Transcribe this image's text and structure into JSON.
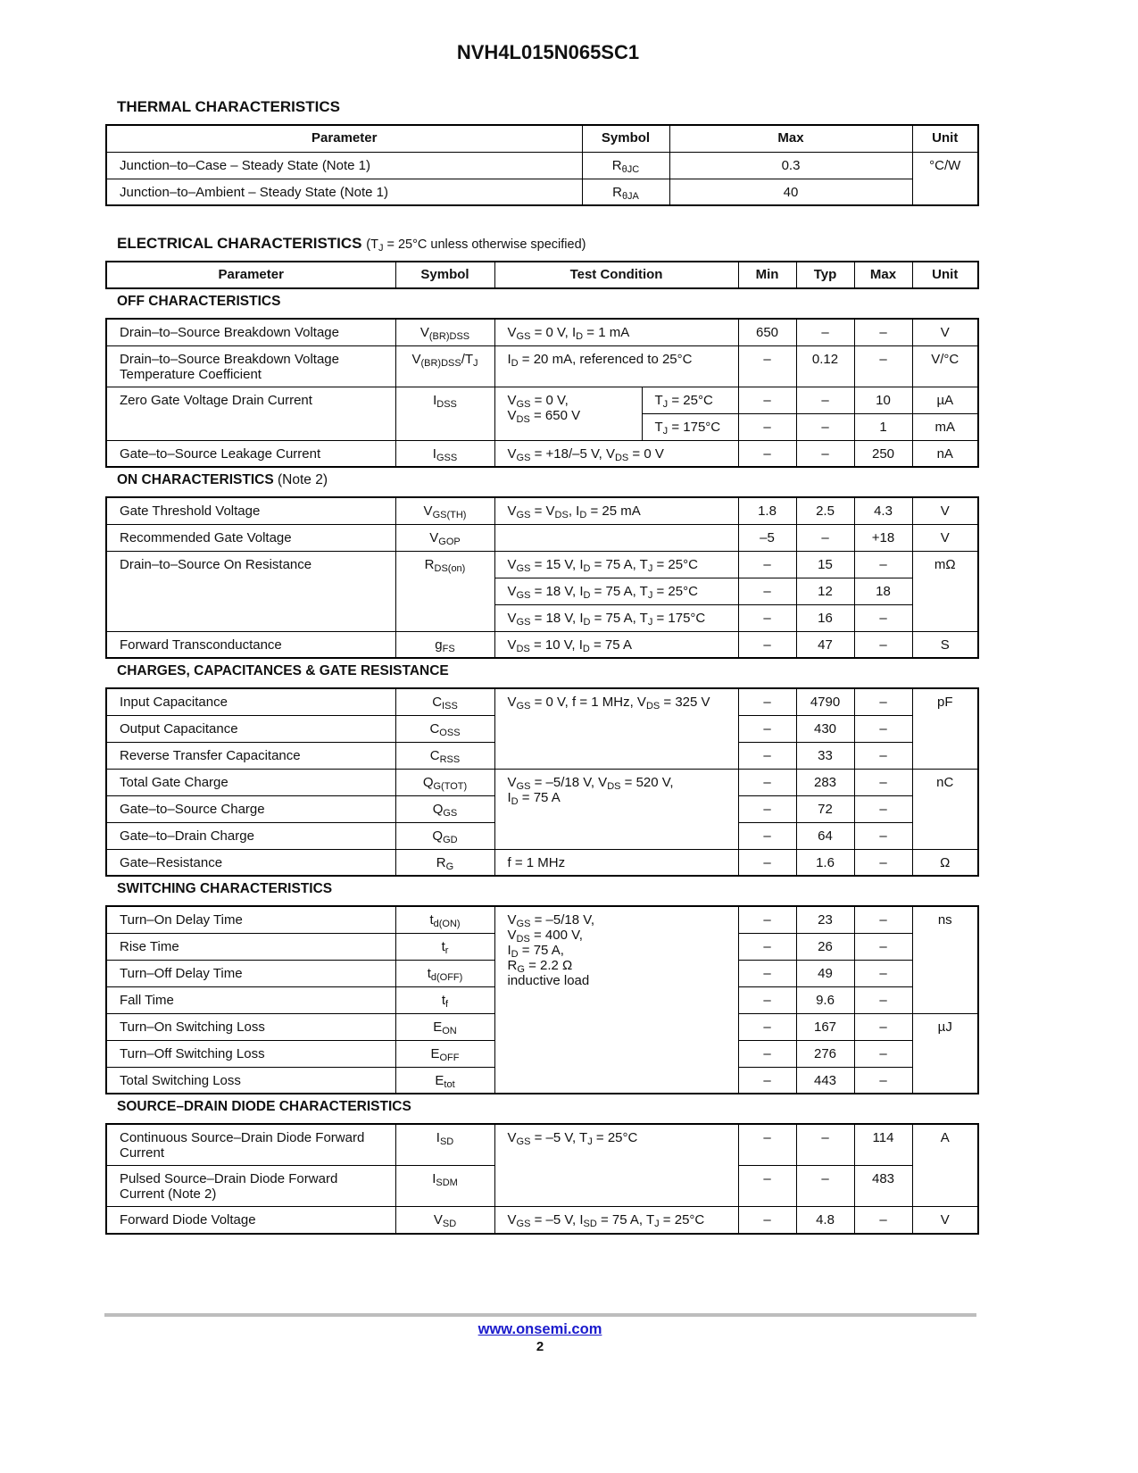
{
  "title": "NVH4L015N065SC1",
  "thermal": {
    "title": "THERMAL CHARACTERISTICS",
    "headers": [
      "Parameter",
      "Symbol",
      "Max",
      "Unit"
    ],
    "rows": [
      {
        "param": "Junction–to–Case – Steady State (Note 1)",
        "sym": "R_{θJC}",
        "max": "0.3",
        "unit": "°C/W"
      },
      {
        "param": "Junction–to–Ambient – Steady State (Note 1)",
        "sym": "R_{θJA}",
        "max": "40",
        "unit": null
      }
    ]
  },
  "electrical": {
    "title": "ELECTRICAL CHARACTERISTICS",
    "note": "(T_{J} = 25°C unless otherwise specified)",
    "headers": [
      "Parameter",
      "Symbol",
      "Test Condition",
      "Min",
      "Typ",
      "Max",
      "Unit"
    ],
    "sections": [
      {
        "title": "OFF CHARACTERISTICS",
        "note": "",
        "rows": [
          {
            "param": "Drain–to–Source Breakdown Voltage",
            "sym": "V_{(BR)DSS}",
            "cond": "V_{GS} = 0 V, I_{D} = 1 mA",
            "min": "650",
            "typ": "–",
            "max": "–",
            "unit": "V"
          },
          {
            "param": "Drain–to–Source Breakdown Voltage\nTemperature Coefficient",
            "sym": "V_{(BR)DSS}/T_{J}",
            "cond": "I_{D} = 20 mA, referenced to 25°C",
            "min": "–",
            "typ": "0.12",
            "max": "–",
            "unit": "V/°C"
          },
          {
            "param": "Zero Gate Voltage Drain Current",
            "sym": "I_{DSS}",
            "cond": "V_{GS} = 0 V,\nV_{DS} = 650 V",
            "cond2": "T_{J} = 25°C",
            "min": "–",
            "typ": "–",
            "max": "10",
            "unit": "µA"
          },
          {
            "param": null,
            "sym": null,
            "cond": null,
            "cond2": "T_{J} = 175°C",
            "min": "–",
            "typ": "–",
            "max": "1",
            "unit": "mA"
          },
          {
            "param": "Gate–to–Source Leakage Current",
            "sym": "I_{GSS}",
            "cond": "V_{GS} =  +18/–5 V, V_{DS} = 0 V",
            "min": "–",
            "typ": "–",
            "max": "250",
            "unit": "nA"
          }
        ]
      },
      {
        "title": "ON CHARACTERISTICS",
        "note": "(Note 2)",
        "rows": [
          {
            "param": "Gate Threshold Voltage",
            "sym": "V_{GS(TH)}",
            "cond": "V_{GS} = V_{DS}, I_{D} = 25 mA",
            "min": "1.8",
            "typ": "2.5",
            "max": "4.3",
            "unit": "V"
          },
          {
            "param": "Recommended Gate Voltage",
            "sym": "V_{GOP}",
            "cond": "",
            "min": "–5",
            "typ": "–",
            "max": "+18",
            "unit": "V"
          },
          {
            "param": "Drain–to–Source On Resistance",
            "sym": "R_{DS(on)}",
            "cond": "V_{GS} = 15 V, I_{D} = 75 A, T_{J} = 25°C",
            "min": "–",
            "typ": "15",
            "max": "–",
            "unit": "mΩ"
          },
          {
            "param": null,
            "sym": null,
            "cond": "V_{GS} = 18 V, I_{D} = 75 A, T_{J} = 25°C",
            "min": "–",
            "typ": "12",
            "max": "18",
            "unit": null
          },
          {
            "param": null,
            "sym": null,
            "cond": "V_{GS} = 18 V, I_{D} = 75 A, T_{J} = 175°C",
            "min": "–",
            "typ": "16",
            "max": "–",
            "unit": null
          },
          {
            "param": "Forward Transconductance",
            "sym": "g_{FS}",
            "cond": "V_{DS} = 10 V, I_{D} = 75 A",
            "min": "–",
            "typ": "47",
            "max": "–",
            "unit": "S"
          }
        ]
      },
      {
        "title": "CHARGES, CAPACITANCES & GATE RESISTANCE",
        "note": "",
        "rows": [
          {
            "param": "Input Capacitance",
            "sym": "C_{ISS}",
            "cond": "V_{GS} = 0 V, f = 1 MHz, V_{DS} = 325 V",
            "min": "–",
            "typ": "4790",
            "max": "–",
            "unit": "pF"
          },
          {
            "param": "Output Capacitance",
            "sym": "C_{OSS}",
            "cond": null,
            "min": "–",
            "typ": "430",
            "max": "–",
            "unit": null
          },
          {
            "param": "Reverse Transfer Capacitance",
            "sym": "C_{RSS}",
            "cond": null,
            "min": "–",
            "typ": "33",
            "max": "–",
            "unit": null
          },
          {
            "param": "Total Gate Charge",
            "sym": "Q_{G(TOT)}",
            "cond": "V_{GS} = –5/18 V, V_{DS} = 520 V,\nI_{D} = 75 A",
            "min": "–",
            "typ": "283",
            "max": "–",
            "unit": "nC"
          },
          {
            "param": "Gate–to–Source Charge",
            "sym": "Q_{GS}",
            "cond": null,
            "min": "–",
            "typ": "72",
            "max": "–",
            "unit": null
          },
          {
            "param": "Gate–to–Drain Charge",
            "sym": "Q_{GD}",
            "cond": null,
            "min": "–",
            "typ": "64",
            "max": "–",
            "unit": null
          },
          {
            "param": "Gate–Resistance",
            "sym": "R_{G}",
            "cond": "f = 1 MHz",
            "min": "–",
            "typ": "1.6",
            "max": "–",
            "unit": "Ω"
          }
        ]
      },
      {
        "title": "SWITCHING CHARACTERISTICS",
        "note": "",
        "rows": [
          {
            "param": "Turn–On Delay Time",
            "sym": "t_{d(ON)}",
            "cond": "V_{GS} = –5/18 V,\nV_{DS} = 400 V,\nI_{D} = 75 A,\nR_{G} = 2.2 Ω\ninductive load",
            "min": "–",
            "typ": "23",
            "max": "–",
            "unit": "ns"
          },
          {
            "param": "Rise Time",
            "sym": "t_{r}",
            "cond": null,
            "min": "–",
            "typ": "26",
            "max": "–",
            "unit": null
          },
          {
            "param": "Turn–Off Delay Time",
            "sym": "t_{d(OFF)}",
            "cond": null,
            "min": "–",
            "typ": "49",
            "max": "–",
            "unit": null
          },
          {
            "param": "Fall Time",
            "sym": "t_{f}",
            "cond": null,
            "min": "–",
            "typ": "9.6",
            "max": "–",
            "unit": null
          },
          {
            "param": "Turn–On Switching Loss",
            "sym": "E_{ON}",
            "cond": null,
            "min": "–",
            "typ": "167",
            "max": "–",
            "unit": "µJ"
          },
          {
            "param": "Turn–Off Switching Loss",
            "sym": "E_{OFF}",
            "cond": null,
            "min": "–",
            "typ": "276",
            "max": "–",
            "unit": null
          },
          {
            "param": "Total Switching Loss",
            "sym": "E_{tot}",
            "cond": null,
            "min": "–",
            "typ": "443",
            "max": "–",
            "unit": null
          }
        ]
      },
      {
        "title": "SOURCE–DRAIN DIODE CHARACTERISTICS",
        "note": "",
        "rows": [
          {
            "param": "Continuous Source–Drain Diode Forward\nCurrent",
            "sym": "I_{SD}",
            "cond": "V_{GS} = –5 V, T_{J} = 25°C",
            "min": "–",
            "typ": "–",
            "max": "114",
            "unit": "A"
          },
          {
            "param": "Pulsed Source–Drain Diode Forward\nCurrent (Note 2)",
            "sym": "I_{SDM}",
            "cond": null,
            "min": "–",
            "typ": "–",
            "max": "483",
            "unit": null
          },
          {
            "param": "Forward Diode Voltage",
            "sym": "V_{SD}",
            "cond": "V_{GS} = –5 V, I_{SD} = 75 A, T_{J} = 25°C",
            "min": "–",
            "typ": "4.8",
            "max": "–",
            "unit": "V"
          }
        ]
      }
    ]
  },
  "footer": {
    "link": "www.onsemi.com",
    "page": "2",
    "link_color": "#1a1acc"
  }
}
